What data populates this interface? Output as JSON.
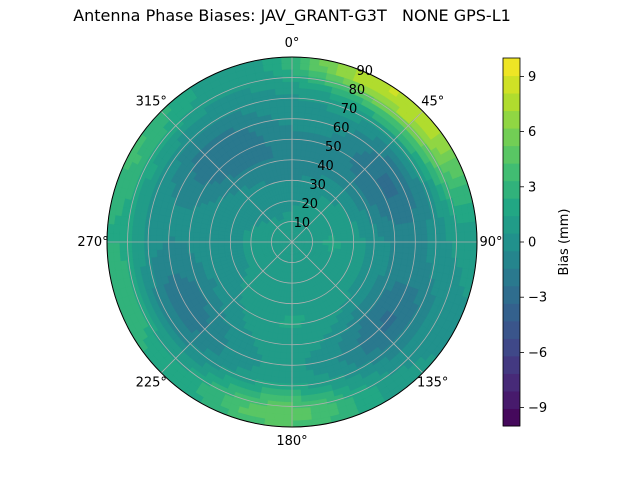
{
  "chart_data": {
    "type": "heatmap",
    "projection": "polar",
    "title": "Antenna Phase Biases: JAV_GRANT-G3T   NONE GPS-L1",
    "theta_tick_labels": [
      "0°",
      "45°",
      "90°",
      "135°",
      "180°",
      "225°",
      "270°",
      "315°"
    ],
    "theta_direction": "clockwise",
    "theta_zero": "top",
    "r_ticks": [
      10,
      20,
      30,
      40,
      50,
      60,
      70,
      80,
      90
    ],
    "r_range": [
      0,
      90
    ],
    "grid": true,
    "colorbar": {
      "label": "Bias (mm)",
      "ticks": [
        "−9",
        "−6",
        "−3",
        "0",
        "3",
        "6",
        "9"
      ],
      "tick_values": [
        -9,
        -6,
        -3,
        0,
        3,
        6,
        9
      ],
      "range": [
        -10,
        10
      ],
      "colormap": "viridis",
      "levels": 21
    },
    "base_value": 0.5,
    "features": [
      {
        "theta": 50,
        "r": 86,
        "value": 6.5,
        "dtheta": 26,
        "dr": 14
      },
      {
        "theta": 20,
        "r": 88,
        "value": 5.0,
        "dtheta": 22,
        "dr": 10
      },
      {
        "theta": 185,
        "r": 84,
        "value": 4.5,
        "dtheta": 30,
        "dr": 12
      },
      {
        "theta": 300,
        "r": 88,
        "value": 3.0,
        "dtheta": 25,
        "dr": 12
      },
      {
        "theta": 250,
        "r": 86,
        "value": 3.0,
        "dtheta": 22,
        "dr": 12
      },
      {
        "theta": 60,
        "r": 55,
        "value": -3.0,
        "dtheta": 30,
        "dr": 18
      },
      {
        "theta": 130,
        "r": 60,
        "value": -3.0,
        "dtheta": 28,
        "dr": 16
      },
      {
        "theta": 240,
        "r": 60,
        "value": -2.5,
        "dtheta": 30,
        "dr": 18
      },
      {
        "theta": 320,
        "r": 55,
        "value": -2.5,
        "dtheta": 30,
        "dr": 16
      },
      {
        "theta": 0,
        "r": 40,
        "value": -1.5,
        "dtheta": 40,
        "dr": 15
      },
      {
        "theta": 180,
        "r": 40,
        "value": 1.0,
        "dtheta": 40,
        "dr": 15
      },
      {
        "theta": 90,
        "r": 20,
        "value": 1.0,
        "dtheta": 60,
        "dr": 15
      }
    ]
  }
}
